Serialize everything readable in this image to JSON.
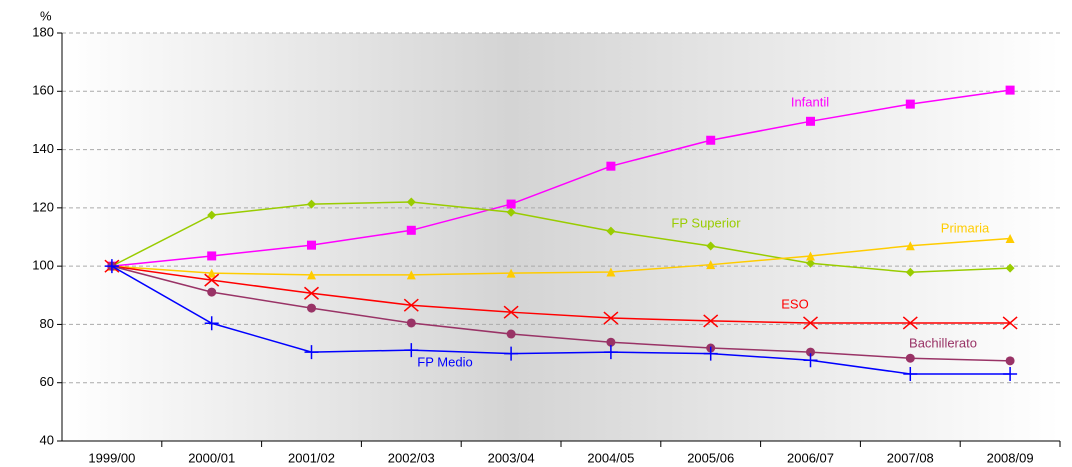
{
  "chart_data": {
    "type": "line",
    "y_label": "%",
    "categories": [
      "1999/00",
      "2000/01",
      "2001/02",
      "2002/03",
      "2003/04",
      "2004/05",
      "2005/06",
      "2006/07",
      "2007/08",
      "2008/09"
    ],
    "ylim": [
      40,
      180
    ],
    "yticks": [
      40,
      60,
      80,
      100,
      120,
      140,
      160,
      180
    ],
    "grid": true,
    "series": [
      {
        "name": "Infantil",
        "color": "#ff00ff",
        "marker": "square",
        "values": [
          100,
          103.5,
          107.2,
          112.3,
          121.3,
          134.3,
          143.2,
          149.7,
          155.6,
          160.4
        ]
      },
      {
        "name": "FP Superior",
        "color": "#99cc00",
        "marker": "diamond",
        "values": [
          100,
          117.5,
          121.3,
          122,
          118.5,
          112,
          106.9,
          101,
          97.9,
          99.3
        ]
      },
      {
        "name": "Primaria",
        "color": "#ffcc00",
        "marker": "triangle",
        "values": [
          100,
          97.6,
          97,
          97,
          97.6,
          98,
          100.5,
          103.5,
          107,
          109.5
        ]
      },
      {
        "name": "ESO",
        "color": "#ff0000",
        "marker": "x",
        "values": [
          100,
          95.2,
          90.7,
          86.6,
          84.2,
          82.2,
          81.2,
          80.5,
          80.5,
          80.5
        ]
      },
      {
        "name": "Bachillerato",
        "color": "#993366",
        "marker": "circle",
        "values": [
          100,
          91.1,
          85.6,
          80.5,
          76.7,
          73.9,
          71.9,
          70.5,
          68.4,
          67.5
        ]
      },
      {
        "name": "FP Medio",
        "color": "#0000ff",
        "marker": "plus",
        "values": [
          100,
          80.4,
          70.5,
          71.2,
          70,
          70.5,
          70,
          67.7,
          63,
          63
        ]
      }
    ]
  }
}
